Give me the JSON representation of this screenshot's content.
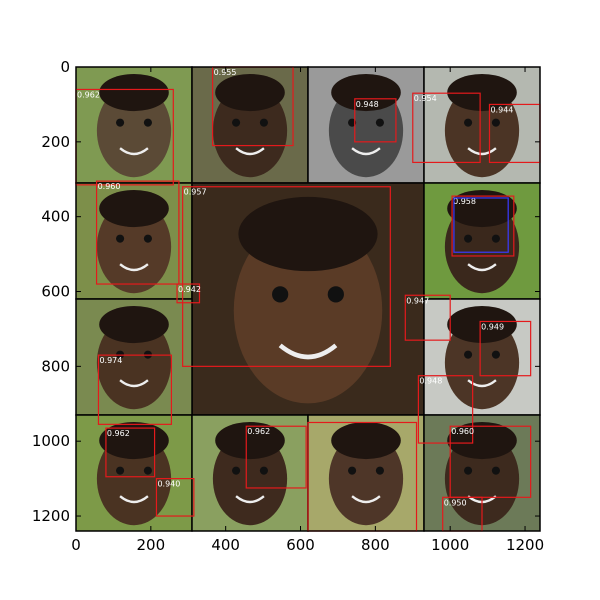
{
  "figure": {
    "x_ticks": [
      "0",
      "200",
      "400",
      "600",
      "800",
      "1000",
      "1200"
    ],
    "y_ticks": [
      "0",
      "200",
      "400",
      "600",
      "800",
      "1000",
      "1200"
    ],
    "image_width": 1240,
    "image_height": 1240,
    "colors": {
      "box": "#e41a1c",
      "box_blue": "#3a3aff",
      "border": "#000000",
      "score_text": "#ffffff"
    }
  },
  "tiles": [
    {
      "x0": 0,
      "y0": 0,
      "x1": 310,
      "y1": 310,
      "tone": "#5b4a36",
      "bg": "#7f9a52"
    },
    {
      "x0": 310,
      "y0": 0,
      "x1": 620,
      "y1": 310,
      "tone": "#3d2a1e",
      "bg": "#6a6a4a"
    },
    {
      "x0": 620,
      "y0": 0,
      "x1": 930,
      "y1": 310,
      "tone": "#4a4a4a",
      "bg": "#9a9a9a"
    },
    {
      "x0": 930,
      "y0": 0,
      "x1": 1240,
      "y1": 310,
      "tone": "#4b3425",
      "bg": "#b4b8b0"
    },
    {
      "x0": 0,
      "y0": 310,
      "x1": 310,
      "y1": 620,
      "tone": "#553a28",
      "bg": "#7d8f4a"
    },
    {
      "x0": 310,
      "y0": 310,
      "x1": 930,
      "y1": 930,
      "tone": "#5a3b26",
      "bg": "#3a2a1c"
    },
    {
      "x0": 930,
      "y0": 310,
      "x1": 1240,
      "y1": 620,
      "tone": "#3a281c",
      "bg": "#6f9a3f"
    },
    {
      "x0": 0,
      "y0": 620,
      "x1": 310,
      "y1": 930,
      "tone": "#4a3322",
      "bg": "#7a8a50"
    },
    {
      "x0": 930,
      "y0": 620,
      "x1": 1240,
      "y1": 930,
      "tone": "#4c3526",
      "bg": "#c7c9c4"
    },
    {
      "x0": 0,
      "y0": 930,
      "x1": 310,
      "y1": 1240,
      "tone": "#4a3322",
      "bg": "#7d9a48"
    },
    {
      "x0": 310,
      "y0": 930,
      "x1": 620,
      "y1": 1240,
      "tone": "#3e2a1e",
      "bg": "#8aa060"
    },
    {
      "x0": 620,
      "y0": 930,
      "x1": 930,
      "y1": 1240,
      "tone": "#4e3628",
      "bg": "#a7a86a"
    },
    {
      "x0": 930,
      "y0": 930,
      "x1": 1240,
      "y1": 1240,
      "tone": "#3d2a1e",
      "bg": "#6c7a58"
    }
  ],
  "detections": [
    {
      "x": 0,
      "y": 60,
      "w": 260,
      "h": 255,
      "score": "0.962",
      "color": "box"
    },
    {
      "x": 365,
      "y": 0,
      "w": 215,
      "h": 210,
      "score": "0.955",
      "color": "box"
    },
    {
      "x": 745,
      "y": 85,
      "w": 110,
      "h": 115,
      "score": "0.948",
      "color": "box"
    },
    {
      "x": 900,
      "y": 70,
      "w": 180,
      "h": 185,
      "score": "0.954",
      "color": "box"
    },
    {
      "x": 1105,
      "y": 100,
      "w": 135,
      "h": 155,
      "score": "0.944",
      "color": "box"
    },
    {
      "x": 55,
      "y": 305,
      "w": 220,
      "h": 275,
      "score": "0.960",
      "color": "box"
    },
    {
      "x": 285,
      "y": 320,
      "w": 555,
      "h": 480,
      "score": "0.957",
      "color": "box"
    },
    {
      "x": 1005,
      "y": 345,
      "w": 165,
      "h": 160,
      "score": "0.958",
      "color": "box"
    },
    {
      "x": 1010,
      "y": 350,
      "w": 145,
      "h": 145,
      "score": "",
      "color": "box_blue"
    },
    {
      "x": 270,
      "y": 580,
      "w": 60,
      "h": 50,
      "score": "0.942",
      "color": "box"
    },
    {
      "x": 880,
      "y": 610,
      "w": 120,
      "h": 120,
      "score": "0.947",
      "color": "box"
    },
    {
      "x": 1080,
      "y": 680,
      "w": 135,
      "h": 145,
      "score": "0.949",
      "color": "box"
    },
    {
      "x": 60,
      "y": 770,
      "w": 195,
      "h": 185,
      "score": "0.974",
      "color": "box"
    },
    {
      "x": 915,
      "y": 825,
      "w": 145,
      "h": 180,
      "score": "0.948",
      "color": "box"
    },
    {
      "x": 80,
      "y": 965,
      "w": 130,
      "h": 130,
      "score": "0.962",
      "color": "box"
    },
    {
      "x": 215,
      "y": 1100,
      "w": 100,
      "h": 100,
      "score": "0.940",
      "color": "box"
    },
    {
      "x": 455,
      "y": 960,
      "w": 160,
      "h": 165,
      "score": "0.962",
      "color": "box"
    },
    {
      "x": 620,
      "y": 950,
      "w": 290,
      "h": 290,
      "score": "",
      "color": "box"
    },
    {
      "x": 1000,
      "y": 960,
      "w": 215,
      "h": 190,
      "score": "0.960",
      "color": "box"
    },
    {
      "x": 980,
      "y": 1150,
      "w": 105,
      "h": 90,
      "score": "0.950",
      "color": "box"
    }
  ]
}
